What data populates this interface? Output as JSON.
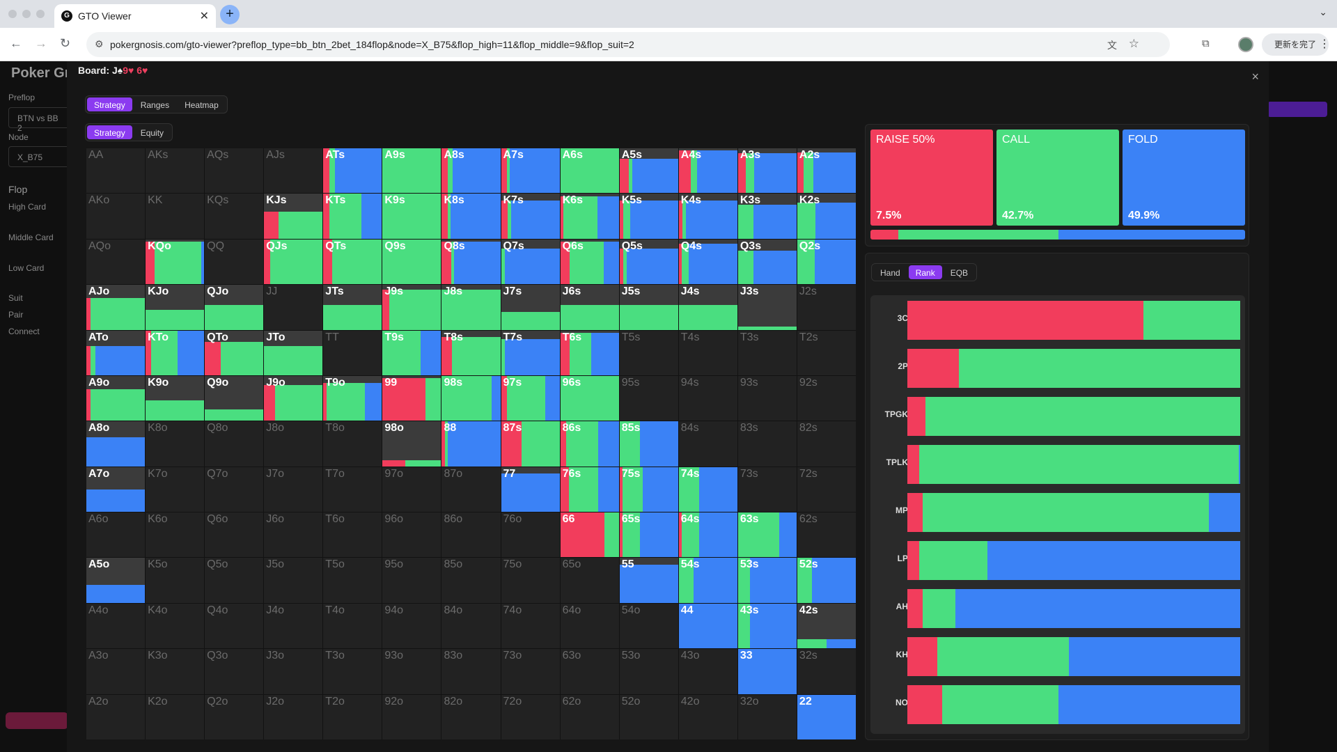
{
  "colors": {
    "raise": "#f23d5c",
    "call": "#4ade80",
    "fold": "#3b82f6",
    "check": "#3b3b3b",
    "accent": "#8b3bf0"
  },
  "browser": {
    "tab_title": "GTO Viewer",
    "favicon": "G",
    "url": "pokergnosis.com/gto-viewer?preflop_type=bb_btn_2bet_184flop&node=X_B75&flop_high=11&flop_middle=9&flop_suit=2",
    "update_label": "更新を完了"
  },
  "sidebar": {
    "logo": "Poker Gn",
    "preflop_label": "Preflop",
    "preflop_value": "BTN vs BB 2",
    "node_label": "Node",
    "node_value": "X_B75",
    "flop_label": "Flop",
    "high_card": "High Card",
    "middle_card": "Middle Card",
    "low_card": "Low Card",
    "suit": "Suit",
    "pair": "Pair",
    "connect": "Connect"
  },
  "modal": {
    "board_label": "Board: J",
    "board_suit1": "♠",
    "board_card2": "9",
    "board_suit2": "♥",
    "board_card3": "6",
    "board_suit3": "♥",
    "close_icon": "×",
    "view_tabs": [
      "Strategy",
      "Ranges",
      "Heatmap"
    ],
    "sub_tabs": [
      "Strategy",
      "Equity"
    ],
    "panel_tabs": [
      "Hand",
      "Rank",
      "EQB"
    ]
  },
  "summary": {
    "actions": [
      {
        "name": "RAISE 50%",
        "pct": "7.5%",
        "value": 7.5
      },
      {
        "name": "CALL",
        "pct": "42.7%",
        "value": 42.7
      },
      {
        "name": "FOLD",
        "pct": "49.9%",
        "value": 49.9
      }
    ]
  },
  "rank_bars": [
    {
      "label": "3C",
      "raise": 71,
      "call": 29,
      "fold": 0
    },
    {
      "label": "2P",
      "raise": 15.5,
      "call": 84.5,
      "fold": 0
    },
    {
      "label": "TPGK",
      "raise": 5.5,
      "call": 94.5,
      "fold": 0
    },
    {
      "label": "TPLK",
      "raise": 3.5,
      "call": 96,
      "fold": 0.5
    },
    {
      "label": "MP",
      "raise": 4.5,
      "call": 86,
      "fold": 9.5
    },
    {
      "label": "LP",
      "raise": 3.5,
      "call": 20.5,
      "fold": 76
    },
    {
      "label": "AH",
      "raise": 4.5,
      "call": 10,
      "fold": 85.5
    },
    {
      "label": "KH",
      "raise": 9,
      "call": 39.5,
      "fold": 51.5
    },
    {
      "label": "NO",
      "raise": 10.5,
      "call": 35,
      "fold": 54.5
    }
  ],
  "grid": [
    [
      "AA",
      0,
      0,
      0,
      0
    ],
    [
      "AKs",
      0,
      0,
      0,
      0
    ],
    [
      "AQs",
      0,
      0,
      0,
      0
    ],
    [
      "AJs",
      0,
      0,
      0,
      0
    ],
    [
      "ATs",
      1,
      0.1,
      0.1,
      0.8
    ],
    [
      "A9s",
      1,
      0.0,
      1.0,
      0.0
    ],
    [
      "A8s",
      1,
      0.1,
      0.08,
      0.82
    ],
    [
      "A7s",
      1,
      0.1,
      0.05,
      0.85
    ],
    [
      "A6s",
      1,
      0.0,
      1.0,
      0.0
    ],
    [
      "A5s",
      1,
      0.12,
      0.05,
      0.6
    ],
    [
      "A4s",
      1,
      0.2,
      0.1,
      0.65
    ],
    [
      "A3s",
      1,
      0.12,
      0.12,
      0.65
    ],
    [
      "A2s",
      1,
      0.1,
      0.15,
      0.65
    ],
    [
      "AKo",
      0,
      0,
      0,
      0
    ],
    [
      "KK",
      0,
      0,
      0,
      0
    ],
    [
      "KQs",
      0,
      0,
      0,
      0
    ],
    [
      "KJs",
      1,
      0.15,
      0.45,
      0.0
    ],
    [
      "KTs",
      1,
      0.1,
      0.55,
      0.35
    ],
    [
      "K9s",
      1,
      0.0,
      1.0,
      0.0
    ],
    [
      "K8s",
      1,
      0.1,
      0.05,
      0.85
    ],
    [
      "K7s",
      1,
      0.1,
      0.05,
      0.7
    ],
    [
      "K6s",
      1,
      0.05,
      0.55,
      0.35
    ],
    [
      "K5s",
      1,
      0.05,
      0.1,
      0.7
    ],
    [
      "K4s",
      1,
      0.05,
      0.05,
      0.75
    ],
    [
      "K3s",
      1,
      0.0,
      0.2,
      0.55
    ],
    [
      "K2s",
      1,
      0.0,
      0.25,
      0.55
    ],
    [
      "AQo",
      0,
      0,
      0,
      0
    ],
    [
      "KQo",
      1,
      0.15,
      0.75,
      0.05
    ],
    [
      "QQ",
      0,
      0,
      0,
      0
    ],
    [
      "QJs",
      1,
      0.1,
      0.9,
      0.0
    ],
    [
      "QTs",
      1,
      0.15,
      0.85,
      0.0
    ],
    [
      "Q9s",
      1,
      0.0,
      1.0,
      0.0
    ],
    [
      "Q8s",
      1,
      0.15,
      0.05,
      0.75
    ],
    [
      "Q7s",
      1,
      0.0,
      0.05,
      0.75
    ],
    [
      "Q6s",
      1,
      0.15,
      0.55,
      0.25
    ],
    [
      "Q5s",
      1,
      0.05,
      0.05,
      0.7
    ],
    [
      "Q4s",
      1,
      0.05,
      0.1,
      0.75
    ],
    [
      "Q3s",
      1,
      0.0,
      0.2,
      0.55
    ],
    [
      "Q2s",
      1,
      0.0,
      0.3,
      0.7
    ],
    [
      "AJo",
      1,
      0.05,
      0.65,
      0.0
    ],
    [
      "KJo",
      1,
      0.0,
      0.45,
      0.0
    ],
    [
      "QJo",
      1,
      0.0,
      0.55,
      0.0
    ],
    [
      "JJ",
      0,
      0,
      0,
      0
    ],
    [
      "JTs",
      1,
      0.0,
      0.55,
      0.0
    ],
    [
      "J9s",
      1,
      0.1,
      0.8,
      0.0
    ],
    [
      "J8s",
      1,
      0.0,
      0.9,
      0.0
    ],
    [
      "J7s",
      1,
      0.0,
      0.4,
      0.0
    ],
    [
      "J6s",
      1,
      0.0,
      0.55,
      0.0
    ],
    [
      "J5s",
      1,
      0.0,
      0.55,
      0.0
    ],
    [
      "J4s",
      1,
      0.0,
      0.55,
      0.0
    ],
    [
      "J3s",
      1,
      0.0,
      0.07,
      0.0
    ],
    [
      "J2s",
      0,
      0,
      0,
      0
    ],
    [
      "ATo",
      1,
      0.05,
      0.05,
      0.55
    ],
    [
      "KTo",
      1,
      0.1,
      0.45,
      0.45
    ],
    [
      "QTo",
      1,
      0.2,
      0.55,
      0.0
    ],
    [
      "JTo",
      1,
      0.0,
      0.65,
      0.0
    ],
    [
      "TT",
      0,
      0,
      0,
      0
    ],
    [
      "T9s",
      1,
      0.0,
      0.65,
      0.35
    ],
    [
      "T8s",
      1,
      0.15,
      0.7,
      0.0
    ],
    [
      "T7s",
      1,
      0.0,
      0.05,
      0.75
    ],
    [
      "T6s",
      1,
      0.15,
      0.35,
      0.45
    ],
    [
      "T5s",
      0,
      0,
      0,
      0
    ],
    [
      "T4s",
      0,
      0,
      0,
      0
    ],
    [
      "T3s",
      0,
      0,
      0,
      0
    ],
    [
      "T2s",
      0,
      0,
      0,
      0
    ],
    [
      "A9o",
      1,
      0.05,
      0.65,
      0.0
    ],
    [
      "K9o",
      1,
      0.0,
      0.45,
      0.0
    ],
    [
      "Q9o",
      1,
      0.0,
      0.25,
      0.0
    ],
    [
      "J9o",
      1,
      0.15,
      0.65,
      0.0
    ],
    [
      "T9o",
      1,
      0.05,
      0.55,
      0.25
    ],
    [
      "99",
      1,
      0.7,
      0.25,
      0.0
    ],
    [
      "98s",
      1,
      0.0,
      0.85,
      0.15
    ],
    [
      "97s",
      1,
      0.1,
      0.65,
      0.25
    ],
    [
      "96s",
      1,
      0.0,
      1.0,
      0.0
    ],
    [
      "95s",
      0,
      0,
      0,
      0
    ],
    [
      "94s",
      0,
      0,
      0,
      0
    ],
    [
      "93s",
      0,
      0,
      0,
      0
    ],
    [
      "92s",
      0,
      0,
      0,
      0
    ],
    [
      "A8o",
      1,
      0.0,
      0.0,
      0.65
    ],
    [
      "K8o",
      0,
      0,
      0,
      0
    ],
    [
      "Q8o",
      0,
      0,
      0,
      0
    ],
    [
      "J8o",
      0,
      0,
      0,
      0
    ],
    [
      "T8o",
      0,
      0,
      0,
      0
    ],
    [
      "98o",
      1,
      0.05,
      0.08,
      0.0
    ],
    [
      "88",
      1,
      0.05,
      0.05,
      0.9
    ],
    [
      "87s",
      1,
      0.35,
      0.65,
      0.0
    ],
    [
      "86s",
      1,
      0.1,
      0.55,
      0.35
    ],
    [
      "85s",
      1,
      0.0,
      0.35,
      0.65
    ],
    [
      "84s",
      0,
      0,
      0,
      0
    ],
    [
      "83s",
      0,
      0,
      0,
      0
    ],
    [
      "82s",
      0,
      0,
      0,
      0
    ],
    [
      "A7o",
      1,
      0.0,
      0.0,
      0.5
    ],
    [
      "K7o",
      0,
      0,
      0,
      0
    ],
    [
      "Q7o",
      0,
      0,
      0,
      0
    ],
    [
      "J7o",
      0,
      0,
      0,
      0
    ],
    [
      "T7o",
      0,
      0,
      0,
      0
    ],
    [
      "97o",
      0,
      0,
      0,
      0
    ],
    [
      "87o",
      0,
      0,
      0,
      0
    ],
    [
      "77",
      1,
      0.0,
      0.0,
      0.85
    ],
    [
      "76s",
      1,
      0.15,
      0.5,
      0.35
    ],
    [
      "75s",
      1,
      0.05,
      0.35,
      0.6
    ],
    [
      "74s",
      1,
      0.0,
      0.35,
      0.65
    ],
    [
      "73s",
      0,
      0,
      0,
      0
    ],
    [
      "72s",
      0,
      0,
      0,
      0
    ],
    [
      "A6o",
      0,
      0,
      0,
      0
    ],
    [
      "K6o",
      0,
      0,
      0,
      0
    ],
    [
      "Q6o",
      0,
      0,
      0,
      0
    ],
    [
      "J6o",
      0,
      0,
      0,
      0
    ],
    [
      "T6o",
      0,
      0,
      0,
      0
    ],
    [
      "96o",
      0,
      0,
      0,
      0
    ],
    [
      "86o",
      0,
      0,
      0,
      0
    ],
    [
      "76o",
      0,
      0,
      0,
      0
    ],
    [
      "66",
      1,
      0.75,
      0.25,
      0.0
    ],
    [
      "65s",
      1,
      0.05,
      0.3,
      0.65
    ],
    [
      "64s",
      1,
      0.05,
      0.3,
      0.65
    ],
    [
      "63s",
      1,
      0.0,
      0.7,
      0.3
    ],
    [
      "62s",
      0,
      0,
      0,
      0
    ],
    [
      "A5o",
      1,
      0.0,
      0.0,
      0.4
    ],
    [
      "K5o",
      0,
      0,
      0,
      0
    ],
    [
      "Q5o",
      0,
      0,
      0,
      0
    ],
    [
      "J5o",
      0,
      0,
      0,
      0
    ],
    [
      "T5o",
      0,
      0,
      0,
      0
    ],
    [
      "95o",
      0,
      0,
      0,
      0
    ],
    [
      "85o",
      0,
      0,
      0,
      0
    ],
    [
      "75o",
      0,
      0,
      0,
      0
    ],
    [
      "65o",
      0,
      0,
      0,
      0
    ],
    [
      "55",
      1,
      0.0,
      0.0,
      0.85
    ],
    [
      "54s",
      1,
      0.0,
      0.25,
      0.75
    ],
    [
      "53s",
      1,
      0.0,
      0.2,
      0.8
    ],
    [
      "52s",
      1,
      0.0,
      0.25,
      0.75
    ],
    [
      "A4o",
      0,
      0,
      0,
      0
    ],
    [
      "K4o",
      0,
      0,
      0,
      0
    ],
    [
      "Q4o",
      0,
      0,
      0,
      0
    ],
    [
      "J4o",
      0,
      0,
      0,
      0
    ],
    [
      "T4o",
      0,
      0,
      0,
      0
    ],
    [
      "94o",
      0,
      0,
      0,
      0
    ],
    [
      "84o",
      0,
      0,
      0,
      0
    ],
    [
      "74o",
      0,
      0,
      0,
      0
    ],
    [
      "64o",
      0,
      0,
      0,
      0
    ],
    [
      "54o",
      0,
      0,
      0,
      0
    ],
    [
      "44",
      1,
      0.0,
      0.0,
      1.0
    ],
    [
      "43s",
      1,
      0.0,
      0.2,
      0.8
    ],
    [
      "42s",
      1,
      0.0,
      0.1,
      0.1
    ],
    [
      "A3o",
      0,
      0,
      0,
      0
    ],
    [
      "K3o",
      0,
      0,
      0,
      0
    ],
    [
      "Q3o",
      0,
      0,
      0,
      0
    ],
    [
      "J3o",
      0,
      0,
      0,
      0
    ],
    [
      "T3o",
      0,
      0,
      0,
      0
    ],
    [
      "93o",
      0,
      0,
      0,
      0
    ],
    [
      "83o",
      0,
      0,
      0,
      0
    ],
    [
      "73o",
      0,
      0,
      0,
      0
    ],
    [
      "63o",
      0,
      0,
      0,
      0
    ],
    [
      "53o",
      0,
      0,
      0,
      0
    ],
    [
      "43o",
      0,
      0,
      0,
      0
    ],
    [
      "33",
      1,
      0.0,
      0.0,
      1.0
    ],
    [
      "32s",
      0,
      0,
      0,
      0
    ],
    [
      "A2o",
      0,
      0,
      0,
      0
    ],
    [
      "K2o",
      0,
      0,
      0,
      0
    ],
    [
      "Q2o",
      0,
      0,
      0,
      0
    ],
    [
      "J2o",
      0,
      0,
      0,
      0
    ],
    [
      "T2o",
      0,
      0,
      0,
      0
    ],
    [
      "92o",
      0,
      0,
      0,
      0
    ],
    [
      "82o",
      0,
      0,
      0,
      0
    ],
    [
      "72o",
      0,
      0,
      0,
      0
    ],
    [
      "62o",
      0,
      0,
      0,
      0
    ],
    [
      "52o",
      0,
      0,
      0,
      0
    ],
    [
      "42o",
      0,
      0,
      0,
      0
    ],
    [
      "32o",
      0,
      0,
      0,
      0
    ],
    [
      "22",
      1,
      0.0,
      0.0,
      1.0
    ]
  ]
}
